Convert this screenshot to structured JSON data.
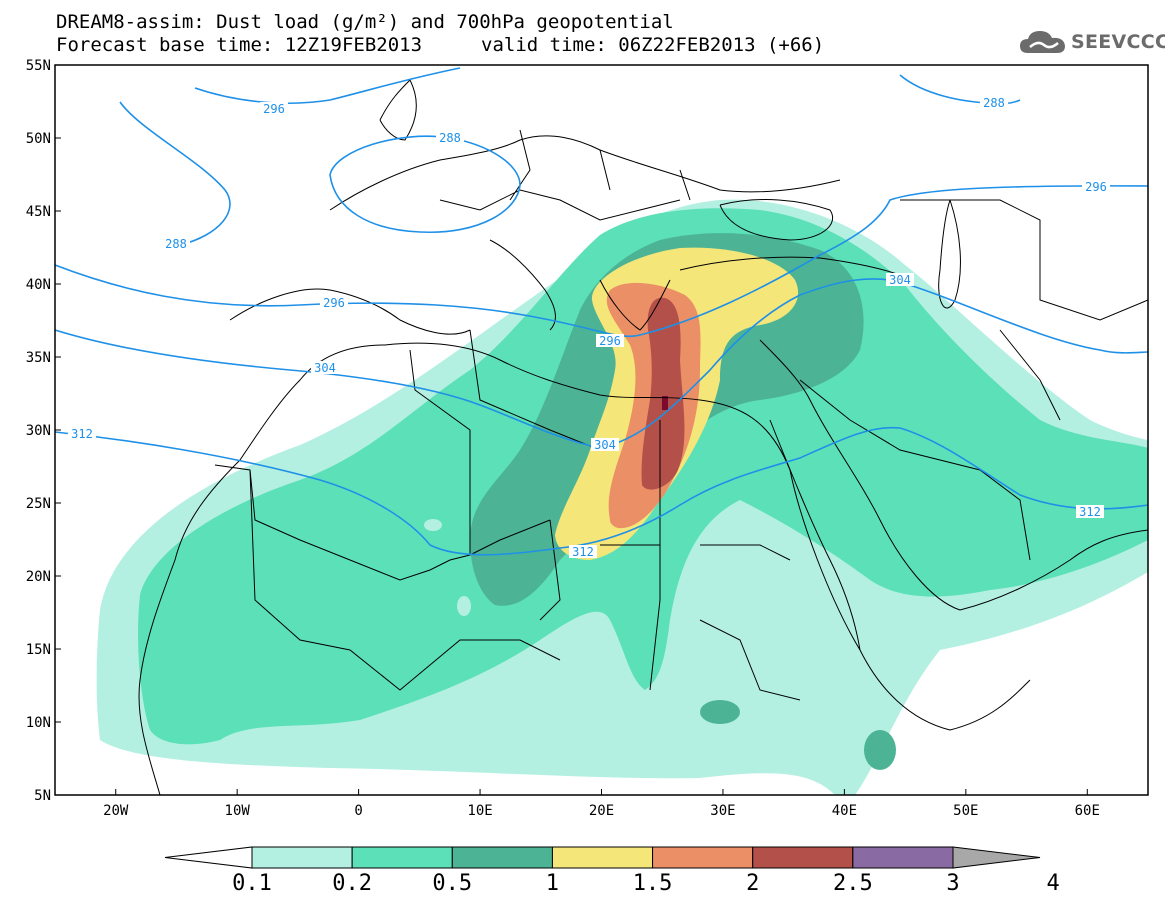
{
  "title": {
    "line1": "DREAM8-assim: Dust load (g/m²) and 700hPa geopotential",
    "line2_base": "Forecast base time: 12Z19FEB2013",
    "line2_valid": "valid time: 06Z22FEB2013 (+66)"
  },
  "logo": {
    "icon": "cloud-icon",
    "text": "SEEVCCC"
  },
  "map": {
    "lon_range": [
      -25,
      65
    ],
    "lat_range": [
      5,
      55
    ],
    "lat_ticks": [
      "5N",
      "10N",
      "15N",
      "20N",
      "25N",
      "30N",
      "35N",
      "40N",
      "45N",
      "50N",
      "55N"
    ],
    "lon_ticks": [
      "20W",
      "10W",
      "0",
      "10E",
      "20E",
      "30E",
      "40E",
      "50E",
      "60E"
    ],
    "contour_color": "#1e90e8",
    "contour_labels": [
      "296",
      "288",
      "288",
      "288",
      "296",
      "296",
      "304",
      "312",
      "304",
      "312",
      "304",
      "312",
      "296"
    ]
  },
  "colorbar": {
    "labels": [
      "0.1",
      "0.2",
      "0.5",
      "1",
      "1.5",
      "2",
      "2.5",
      "3",
      "4"
    ],
    "colors": [
      "#b4f0e2",
      "#5ce0b8",
      "#4cb494",
      "#f5e67a",
      "#eb9066",
      "#b4504a",
      "#7a0a2e",
      "#8a6aa2",
      "#a8a8a8"
    ]
  }
}
